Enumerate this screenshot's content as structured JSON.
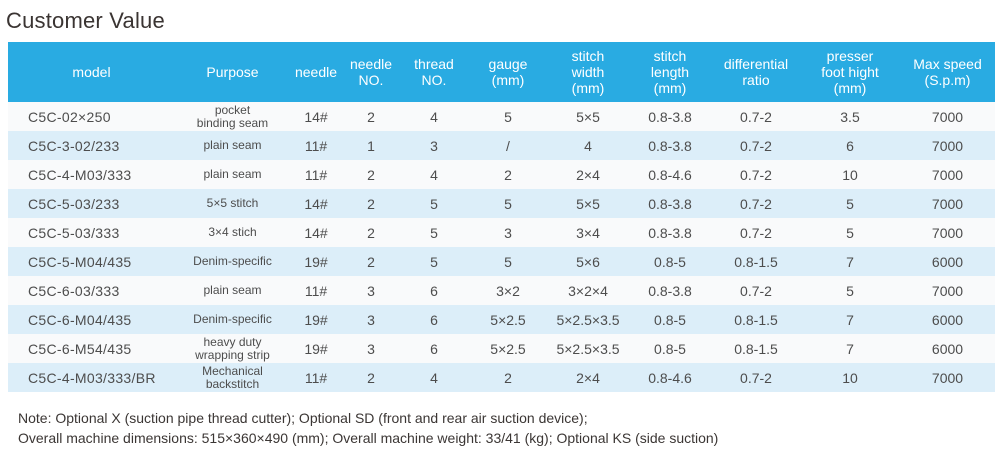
{
  "page_title": "Customer Value",
  "colors": {
    "header_bg": "#29abe2",
    "row_alt_bg": "#dceef9",
    "row_bg": "#f9fafb",
    "header_text": "#ffffff",
    "body_text": "#4d4d4d",
    "title_text": "#3a3432"
  },
  "table": {
    "columns": [
      {
        "key": "model",
        "label": "model"
      },
      {
        "key": "purpose",
        "label": "Purpose"
      },
      {
        "key": "needle",
        "label": "needle"
      },
      {
        "key": "needle_no",
        "label": "needle\nNO."
      },
      {
        "key": "thread_no",
        "label": "thread\nNO."
      },
      {
        "key": "gauge",
        "label": "gauge\n(mm)"
      },
      {
        "key": "stitch_width",
        "label": "stitch\nwidth\n(mm)"
      },
      {
        "key": "stitch_length",
        "label": "stitch\nlength\n(mm)"
      },
      {
        "key": "diff_ratio",
        "label": "differential\nratio"
      },
      {
        "key": "presser_foot",
        "label": "presser\nfoot hight\n(mm)"
      },
      {
        "key": "max_speed",
        "label": "Max speed\n(S.p.m)"
      }
    ],
    "rows": [
      {
        "model": "C5C-02×250",
        "purpose": "pocket\nbinding seam",
        "needle": "14#",
        "needle_no": "2",
        "thread_no": "4",
        "gauge": "5",
        "stitch_width": "5×5",
        "stitch_length": "0.8-3.8",
        "diff_ratio": "0.7-2",
        "presser_foot": "3.5",
        "max_speed": "7000"
      },
      {
        "model": "C5C-3-02/233",
        "purpose": "plain seam",
        "needle": "11#",
        "needle_no": "1",
        "thread_no": "3",
        "gauge": "/",
        "stitch_width": "4",
        "stitch_length": "0.8-3.8",
        "diff_ratio": "0.7-2",
        "presser_foot": "6",
        "max_speed": "7000"
      },
      {
        "model": "C5C-4-M03/333",
        "purpose": "plain seam",
        "needle": "11#",
        "needle_no": "2",
        "thread_no": "4",
        "gauge": "2",
        "stitch_width": "2×4",
        "stitch_length": "0.8-4.6",
        "diff_ratio": "0.7-2",
        "presser_foot": "10",
        "max_speed": "7000"
      },
      {
        "model": "C5C-5-03/233",
        "purpose": "5×5 stitch",
        "needle": "14#",
        "needle_no": "2",
        "thread_no": "5",
        "gauge": "5",
        "stitch_width": "5×5",
        "stitch_length": "0.8-3.8",
        "diff_ratio": "0.7-2",
        "presser_foot": "5",
        "max_speed": "7000"
      },
      {
        "model": "C5C-5-03/333",
        "purpose": "3×4 stich",
        "needle": "14#",
        "needle_no": "2",
        "thread_no": "5",
        "gauge": "3",
        "stitch_width": "3×4",
        "stitch_length": "0.8-3.8",
        "diff_ratio": "0.7-2",
        "presser_foot": "5",
        "max_speed": "7000"
      },
      {
        "model": "C5C-5-M04/435",
        "purpose": "Denim-specific",
        "needle": "19#",
        "needle_no": "2",
        "thread_no": "5",
        "gauge": "5",
        "stitch_width": "5×6",
        "stitch_length": "0.8-5",
        "diff_ratio": "0.8-1.5",
        "presser_foot": "7",
        "max_speed": "6000"
      },
      {
        "model": "C5C-6-03/333",
        "purpose": "plain seam",
        "needle": "11#",
        "needle_no": "3",
        "thread_no": "6",
        "gauge": "3×2",
        "stitch_width": "3×2×4",
        "stitch_length": "0.8-3.8",
        "diff_ratio": "0.7-2",
        "presser_foot": "5",
        "max_speed": "7000"
      },
      {
        "model": "C5C-6-M04/435",
        "purpose": "Denim-specific",
        "needle": "19#",
        "needle_no": "3",
        "thread_no": "6",
        "gauge": "5×2.5",
        "stitch_width": "5×2.5×3.5",
        "stitch_length": "0.8-5",
        "diff_ratio": "0.8-1.5",
        "presser_foot": "7",
        "max_speed": "6000"
      },
      {
        "model": "C5C-6-M54/435",
        "purpose": "heavy duty\nwrapping strip",
        "needle": "19#",
        "needle_no": "3",
        "thread_no": "6",
        "gauge": "5×2.5",
        "stitch_width": "5×2.5×3.5",
        "stitch_length": "0.8-5",
        "diff_ratio": "0.8-1.5",
        "presser_foot": "7",
        "max_speed": "6000"
      },
      {
        "model": "C5C-4-M03/333/BR",
        "purpose": "Mechanical\nbackstitch",
        "needle": "11#",
        "needle_no": "2",
        "thread_no": "4",
        "gauge": "2",
        "stitch_width": "2×4",
        "stitch_length": "0.8-4.6",
        "diff_ratio": "0.7-2",
        "presser_foot": "10",
        "max_speed": "7000"
      }
    ]
  },
  "notes": {
    "line1": "Note: Optional X (suction pipe thread cutter); Optional SD (front and rear air suction device);",
    "line2": "Overall machine dimensions: 515×360×490 (mm); Overall machine weight: 33/41 (kg); Optional KS (side suction)"
  }
}
